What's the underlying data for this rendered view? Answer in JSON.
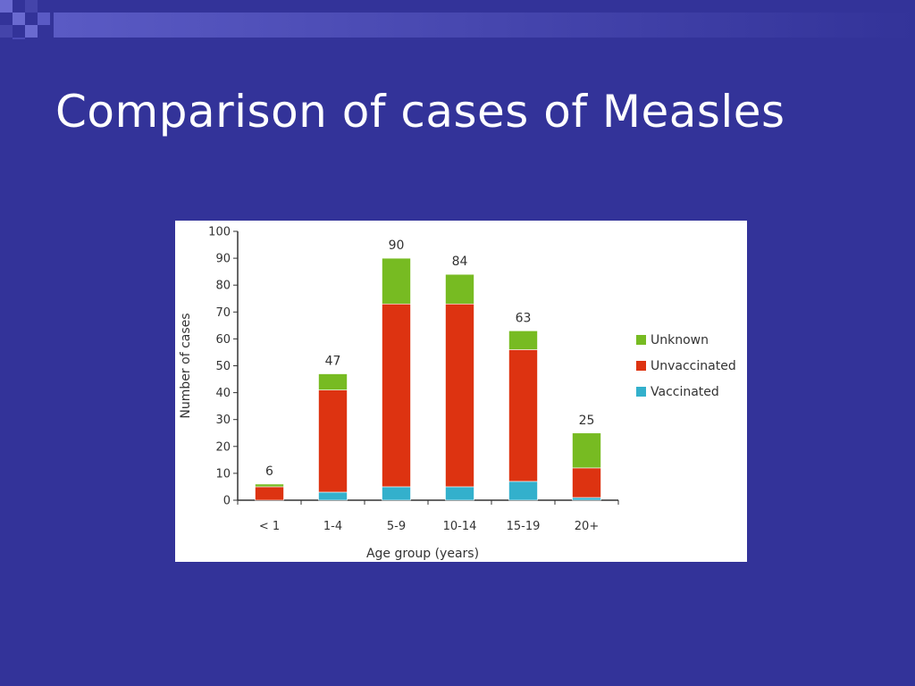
{
  "slide": {
    "title": "Comparison of cases of Measles"
  },
  "colors": {
    "background": "#333399",
    "deco_light": "#6666cc",
    "deco_mid": "#4a4ab5",
    "vaccinated": "#33b0cc",
    "unvaccinated": "#dd3311",
    "unknown": "#77bb22"
  },
  "chart_data": {
    "type": "bar",
    "stacked": true,
    "categories": [
      "< 1",
      "1-4",
      "5-9",
      "10-14",
      "15-19",
      "20+"
    ],
    "series": [
      {
        "name": "Vaccinated",
        "values": [
          0,
          3,
          5,
          5,
          7,
          1
        ]
      },
      {
        "name": "Unvaccinated",
        "values": [
          5,
          38,
          68,
          68,
          49,
          11
        ]
      },
      {
        "name": "Unknown",
        "values": [
          1,
          6,
          17,
          11,
          7,
          13
        ]
      }
    ],
    "totals": [
      6,
      47,
      90,
      84,
      63,
      25
    ],
    "xlabel": "Age group (years)",
    "ylabel": "Number of cases",
    "ylim": [
      0,
      100
    ],
    "yticks": [
      0,
      10,
      20,
      30,
      40,
      50,
      60,
      70,
      80,
      90,
      100
    ],
    "legend": {
      "placement": "right",
      "order": [
        "Unknown",
        "Unvaccinated",
        "Vaccinated"
      ]
    },
    "grid": false
  }
}
